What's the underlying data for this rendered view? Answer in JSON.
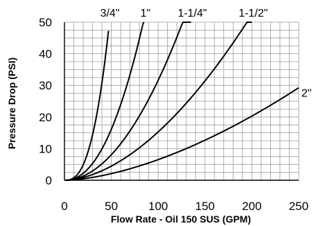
{
  "chart_data": {
    "type": "line",
    "title": "",
    "xlabel": "Flow Rate - Oil 150 SUS (GPM)",
    "ylabel": "Pressure Drop (PSI)",
    "xlim": [
      0,
      250
    ],
    "ylim": [
      0,
      50
    ],
    "x_ticks": [
      "0",
      "50",
      "100",
      "150",
      "200",
      "250"
    ],
    "y_ticks": [
      "0",
      "10",
      "20",
      "30",
      "40",
      "50"
    ],
    "grid": true,
    "grid_step_x": 10,
    "grid_step_y": 2.5,
    "series": [
      {
        "name": "3/4\"",
        "points": [
          [
            0,
            0
          ],
          [
            10,
            0.8
          ],
          [
            20,
            4.7
          ],
          [
            30,
            13.8
          ],
          [
            40,
            30.4
          ],
          [
            47,
            50
          ]
        ]
      },
      {
        "name": "1\"",
        "points": [
          [
            0,
            0
          ],
          [
            20,
            2.2
          ],
          [
            40,
            9.8
          ],
          [
            60,
            24.3
          ],
          [
            70,
            34.0
          ],
          [
            85,
            50
          ]
        ]
      },
      {
        "name": "1-1/4\"",
        "points": [
          [
            0,
            0
          ],
          [
            25,
            1.9
          ],
          [
            50,
            8.5
          ],
          [
            75,
            20.1
          ],
          [
            100,
            33.0
          ],
          [
            135,
            50
          ]
        ]
      },
      {
        "name": "1-1/2\"",
        "points": [
          [
            0,
            0
          ],
          [
            50,
            4.3
          ],
          [
            100,
            16.3
          ],
          [
            150,
            32.0
          ],
          [
            200,
            50
          ]
        ]
      },
      {
        "name": "2\"",
        "points": [
          [
            0,
            0
          ],
          [
            50,
            1.9
          ],
          [
            100,
            7.1
          ],
          [
            150,
            15.0
          ],
          [
            200,
            19.5
          ],
          [
            250,
            26
          ]
        ]
      }
    ]
  }
}
